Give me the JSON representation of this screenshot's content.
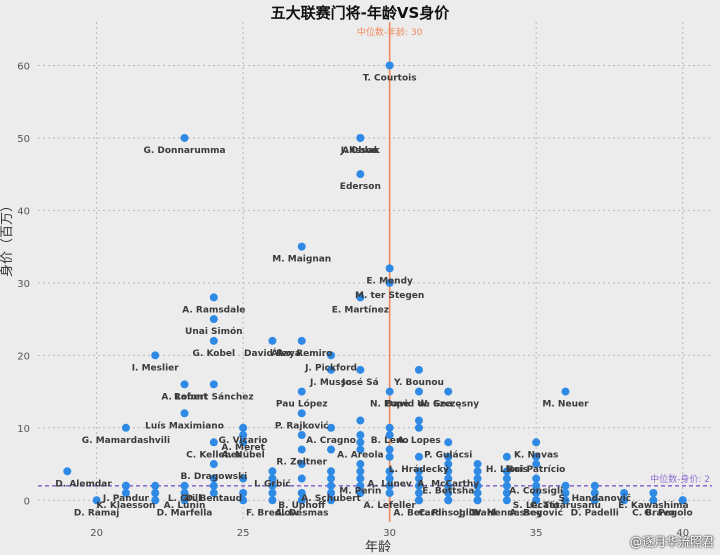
{
  "chart_data": {
    "type": "scatter",
    "title": "五大联赛门将-年龄VS身价",
    "xlabel": "年龄",
    "ylabel": "身价（百万）",
    "xlim": [
      18,
      41
    ],
    "ylim": [
      -3,
      66
    ],
    "xticks": [
      20,
      25,
      30,
      35,
      40
    ],
    "yticks": [
      0,
      10,
      20,
      30,
      40,
      50,
      60
    ],
    "grid": true,
    "median_age": {
      "value": 30,
      "label": "中位数-年龄: 30",
      "color": "#f08a5d"
    },
    "median_value": {
      "value": 2,
      "label": "中位数-身价: 2",
      "color": "#8e6fd1"
    },
    "point_color": "#2f8ae5",
    "points": [
      {
        "label": "T. Courtois",
        "x": 30,
        "y": 60
      },
      {
        "label": "G. Donnarumma",
        "x": 23,
        "y": 50
      },
      {
        "label": "Alisson",
        "x": 29,
        "y": 50
      },
      {
        "label": "J. Oblak",
        "x": 29,
        "y": 50
      },
      {
        "label": "Ederson",
        "x": 29,
        "y": 45
      },
      {
        "label": "M. Maignan",
        "x": 27,
        "y": 35
      },
      {
        "label": "E. Mendy",
        "x": 30,
        "y": 32
      },
      {
        "label": "M. ter Stegen",
        "x": 30,
        "y": 30
      },
      {
        "label": "E. Martínez",
        "x": 29,
        "y": 28
      },
      {
        "label": "A. Ramsdale",
        "x": 24,
        "y": 28
      },
      {
        "label": "Unai Simón",
        "x": 24,
        "y": 25
      },
      {
        "label": "David Raya",
        "x": 26,
        "y": 22
      },
      {
        "label": "G. Kobel",
        "x": 24,
        "y": 22
      },
      {
        "label": "I. Meslier",
        "x": 22,
        "y": 20
      },
      {
        "label": "Álex Remiro",
        "x": 27,
        "y": 22
      },
      {
        "label": "J. Pickford",
        "x": 28,
        "y": 20
      },
      {
        "label": "José Sá",
        "x": 29,
        "y": 18
      },
      {
        "label": "Y. Bounou",
        "x": 31,
        "y": 18
      },
      {
        "label": "A. Lafont",
        "x": 23,
        "y": 16
      },
      {
        "label": "J. Musso",
        "x": 28,
        "y": 18
      },
      {
        "label": "W. Szczęsny",
        "x": 32,
        "y": 15
      },
      {
        "label": "Robert Sánchez",
        "x": 24,
        "y": 16
      },
      {
        "label": "M. Neuer",
        "x": 36,
        "y": 15
      },
      {
        "label": "N. Pope",
        "x": 30,
        "y": 15
      },
      {
        "label": "David de Gea",
        "x": 31,
        "y": 15
      },
      {
        "label": "Pau López",
        "x": 27,
        "y": 15
      },
      {
        "label": "G. Vicario",
        "x": 25,
        "y": 10
      },
      {
        "label": "Luís Maximiano",
        "x": 23,
        "y": 12
      },
      {
        "label": "P. Rajković",
        "x": 27,
        "y": 12
      },
      {
        "label": "B. Leno",
        "x": 30,
        "y": 10
      },
      {
        "label": "K. Navas",
        "x": 35,
        "y": 8
      },
      {
        "label": "G. Mamardashvili",
        "x": 21,
        "y": 10
      },
      {
        "label": "P. Gulácsi",
        "x": 32,
        "y": 8
      },
      {
        "label": "A. Meret",
        "x": 25,
        "y": 9
      },
      {
        "label": "A. Cragno",
        "x": 28,
        "y": 10
      },
      {
        "label": "A. Lopes",
        "x": 31,
        "y": 10
      },
      {
        "label": "Rui Patrício",
        "x": 35,
        "y": 6
      },
      {
        "label": "C. Kelleher",
        "x": 24,
        "y": 8
      },
      {
        "label": "A. Nübel",
        "x": 25,
        "y": 8
      },
      {
        "label": "R. Zeltner",
        "x": 27,
        "y": 7
      },
      {
        "label": "A. Areola",
        "x": 29,
        "y": 8
      },
      {
        "label": "L. Hrádecký",
        "x": 31,
        "y": 6
      },
      {
        "label": "H. Lloris",
        "x": 34,
        "y": 6
      },
      {
        "label": "B. Dragowski",
        "x": 24,
        "y": 5
      },
      {
        "label": "A. McCarthy",
        "x": 32,
        "y": 4
      },
      {
        "label": "I. Grbić",
        "x": 26,
        "y": 4
      },
      {
        "label": "M. Perin",
        "x": 29,
        "y": 3
      },
      {
        "label": "A. Lunev",
        "x": 30,
        "y": 4
      },
      {
        "label": "A. Consigli",
        "x": 35,
        "y": 3
      },
      {
        "label": "S. Handanovič",
        "x": 37,
        "y": 2
      },
      {
        "label": "D. Alemdar",
        "x": 19,
        "y": 4
      },
      {
        "label": "J. Pandur",
        "x": 21,
        "y": 2
      },
      {
        "label": "L. Grill",
        "x": 23,
        "y": 2
      },
      {
        "label": "D. Bentaud",
        "x": 24,
        "y": 2
      },
      {
        "label": "E. Bettsha",
        "x": 32,
        "y": 3
      },
      {
        "label": "A. Schubert",
        "x": 28,
        "y": 2
      },
      {
        "label": "A. Lefeller",
        "x": 30,
        "y": 1
      },
      {
        "label": "K. Klaesson",
        "x": 21,
        "y": 1
      },
      {
        "label": "A. Lunin",
        "x": 23,
        "y": 1
      },
      {
        "label": "B. Uphoff",
        "x": 27,
        "y": 1
      },
      {
        "label": "S. Lecato",
        "x": 35,
        "y": 1
      },
      {
        "label": "C. Tătărușanu",
        "x": 36,
        "y": 1
      },
      {
        "label": "E. Kawashima",
        "x": 39,
        "y": 1
      },
      {
        "label": "C. Pinsoglio",
        "x": 32,
        "y": 0
      },
      {
        "label": "A. Begović",
        "x": 35,
        "y": 0
      },
      {
        "label": "C. Bravo",
        "x": 39,
        "y": 0
      },
      {
        "label": "A. Desmas",
        "x": 27,
        "y": 0
      },
      {
        "label": "D. Ramaj",
        "x": 20,
        "y": 0
      },
      {
        "label": "D. Marfella",
        "x": 23,
        "y": 0
      },
      {
        "label": "F. Bredlow",
        "x": 26,
        "y": 0
      },
      {
        "label": "A. Berardi",
        "x": 31,
        "y": 0
      },
      {
        "label": "D. Padelli",
        "x": 37,
        "y": 0
      },
      {
        "label": "G. Pegolo",
        "x": 40,
        "y": 0
      },
      {
        "label": "J. Grahl",
        "x": 33,
        "y": 0
      },
      {
        "label": "W. Hennessey",
        "x": 34,
        "y": 0
      }
    ],
    "extra_points": [
      [
        29,
        11
      ],
      [
        30,
        9
      ],
      [
        29,
        9
      ],
      [
        31,
        11
      ],
      [
        29,
        7
      ],
      [
        30,
        7
      ],
      [
        30,
        6
      ],
      [
        32,
        5
      ],
      [
        33,
        5
      ],
      [
        33,
        4
      ],
      [
        34,
        3
      ],
      [
        29,
        5
      ],
      [
        29,
        4
      ],
      [
        30,
        3
      ],
      [
        31,
        3
      ],
      [
        32,
        2
      ],
      [
        33,
        2
      ],
      [
        34,
        2
      ],
      [
        35,
        2
      ],
      [
        36,
        2
      ],
      [
        28,
        3
      ],
      [
        28,
        4
      ],
      [
        27,
        3
      ],
      [
        27,
        5
      ],
      [
        26,
        2
      ],
      [
        25,
        3
      ],
      [
        25,
        1
      ],
      [
        26,
        1
      ],
      [
        28,
        1
      ],
      [
        29,
        1
      ],
      [
        29,
        2
      ],
      [
        30,
        2
      ],
      [
        31,
        2
      ],
      [
        31,
        1
      ],
      [
        32,
        1
      ],
      [
        33,
        1
      ],
      [
        34,
        1
      ],
      [
        33,
        3
      ],
      [
        34,
        4
      ],
      [
        36,
        0
      ],
      [
        37,
        1
      ],
      [
        38,
        1
      ],
      [
        38,
        0
      ],
      [
        40,
        0
      ],
      [
        35,
        0
      ],
      [
        33,
        0
      ],
      [
        32,
        0
      ],
      [
        31,
        0
      ],
      [
        28,
        0
      ],
      [
        25,
        0
      ],
      [
        24,
        1
      ],
      [
        22,
        0
      ],
      [
        22,
        2
      ],
      [
        22,
        1
      ],
      [
        21,
        2
      ],
      [
        24,
        3
      ],
      [
        26,
        3
      ],
      [
        27,
        9
      ],
      [
        28,
        7
      ],
      [
        29,
        3
      ],
      [
        30,
        4
      ],
      [
        31,
        4
      ],
      [
        32,
        6
      ],
      [
        35,
        5
      ]
    ]
  },
  "watermark": "@逐月华流照君"
}
